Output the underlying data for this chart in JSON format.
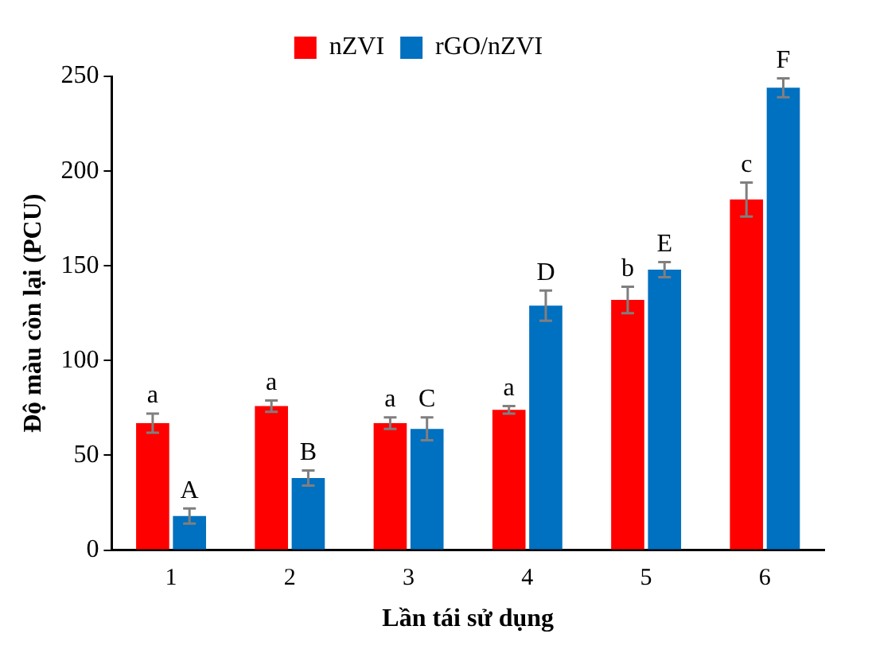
{
  "chart_data": {
    "type": "bar",
    "xlabel": "Lần tái sử dụng",
    "ylabel": "Độ màu còn lại (PCU)",
    "categories": [
      "1",
      "2",
      "3",
      "4",
      "5",
      "6"
    ],
    "series": [
      {
        "name": "nZVI",
        "color": "#ff0000",
        "values": [
          67,
          76,
          67,
          74,
          132,
          185
        ],
        "errors": [
          5,
          3,
          3,
          2,
          7,
          9
        ],
        "value_labels": [
          "a",
          "a",
          "a",
          "a",
          "b",
          "c"
        ]
      },
      {
        "name": "rGO/nZVI",
        "color": "#0070c0",
        "values": [
          18,
          38,
          64,
          129,
          148,
          244
        ],
        "errors": [
          4,
          4,
          6,
          8,
          4,
          5
        ],
        "value_labels": [
          "A",
          "B",
          "C",
          "D",
          "E",
          "F"
        ]
      }
    ],
    "ylim": [
      0,
      250
    ],
    "yticks": [
      0,
      50,
      100,
      150,
      200,
      250
    ],
    "grid": false,
    "legend": "top"
  }
}
